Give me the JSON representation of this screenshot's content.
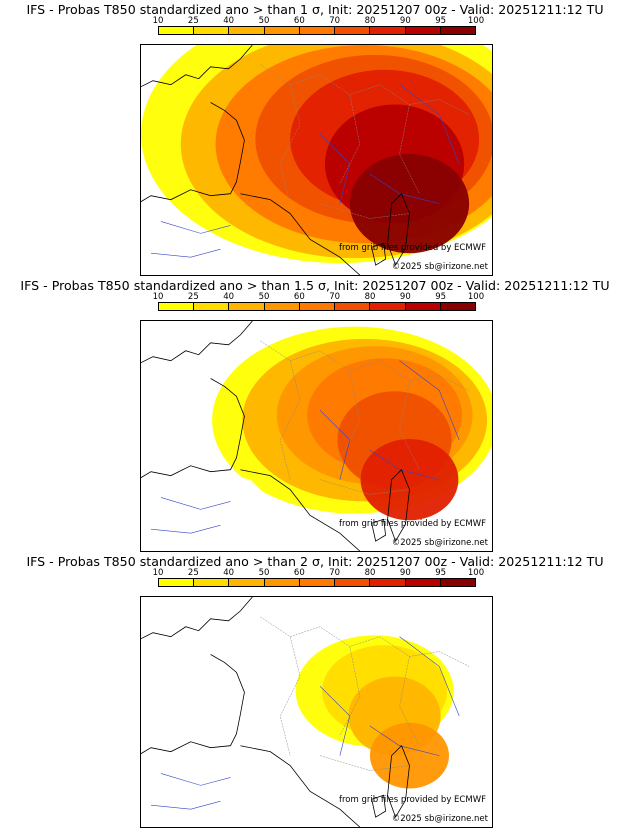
{
  "colorbar": {
    "labels": [
      "10",
      "25",
      "40",
      "50",
      "60",
      "70",
      "80",
      "90",
      "95",
      "100"
    ],
    "colors": [
      "#ffff00",
      "#ffdc00",
      "#ffb400",
      "#ff9600",
      "#ff7800",
      "#f05000",
      "#e02000",
      "#b80000",
      "#880000"
    ]
  },
  "panels": [
    {
      "title": "IFS - Probas T850  standardized ano > than 1 σ, Init: 20251207 00z - Valid: 20251211:12 TU",
      "credit_grib": "from grib files provided by ECMWF",
      "credit_copyright": "©2025 sb@irizone.net",
      "intensity": 1.0
    },
    {
      "title": "IFS - Probas T850  standardized ano > than 1.5 σ, Init: 20251207 00z - Valid: 20251211:12 TU",
      "credit_grib": "from grib files provided by ECMWF",
      "credit_copyright": "©2025 sb@irizone.net",
      "intensity": 0.6
    },
    {
      "title": "IFS - Probas T850  standardized ano > than 2 σ, Init: 20251207 00z - Valid: 20251211:12 TU",
      "credit_grib": "from grib files provided by ECMWF",
      "credit_copyright": "©2025 sb@irizone.net",
      "intensity": 0.25
    }
  ]
}
